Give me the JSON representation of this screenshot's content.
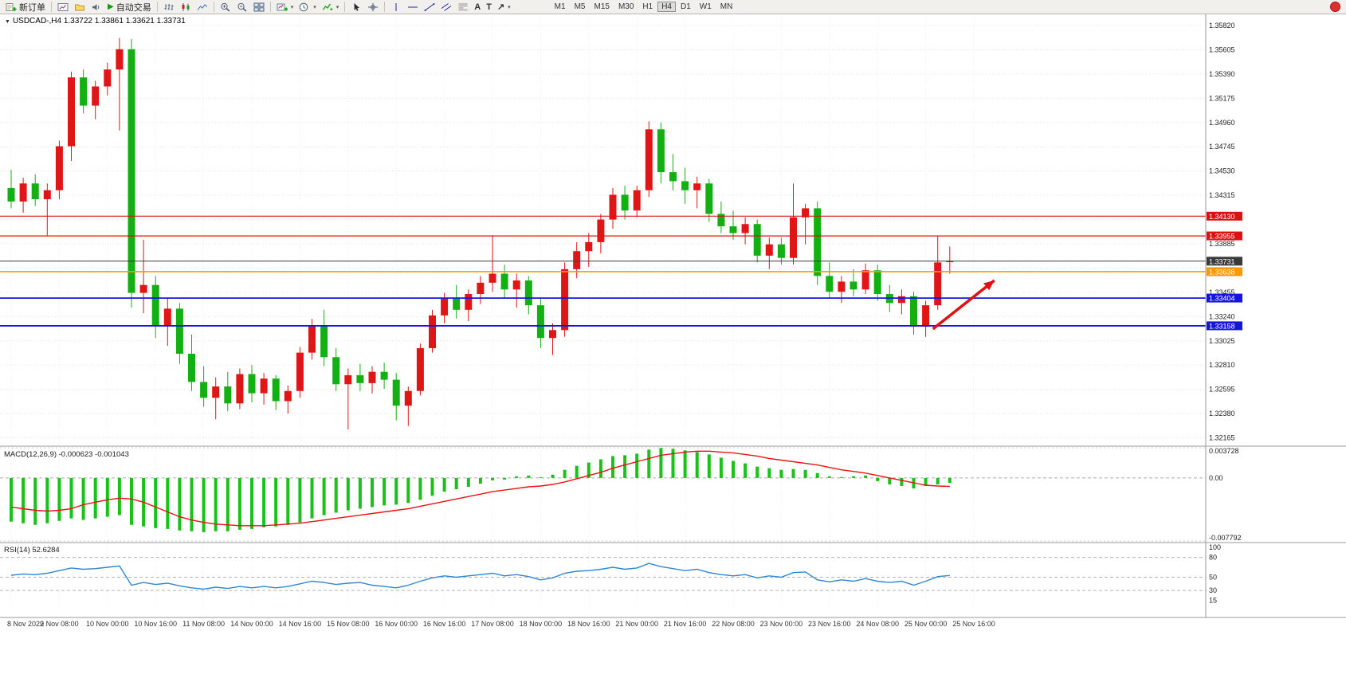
{
  "toolbar": {
    "new_order_label": "新订单",
    "autotrade_label": "自动交易",
    "timeframes": [
      "M1",
      "M5",
      "M15",
      "M30",
      "H1",
      "H4",
      "D1",
      "W1",
      "MN"
    ],
    "active_timeframe": "H4",
    "icons": [
      "new-order-icon",
      "charts-icon",
      "navigator-icon",
      "alerts-icon",
      "autotrade-play-icon",
      "bars-icon",
      "candles-icon",
      "line-chart-icon",
      "zoom-in-icon",
      "zoom-out-icon",
      "tile-windows-icon",
      "new-chart-icon",
      "period-clock-icon",
      "indicators-icon",
      "cursor-icon",
      "crosshair-icon",
      "vertical-line-icon",
      "horizontal-line-icon",
      "trendline-icon",
      "channel-icon",
      "fibonacci-icon",
      "text-icon",
      "label-icon",
      "arrows-icon",
      "notification-badge"
    ]
  },
  "chart_header": {
    "marker": "▼",
    "symbol_period": "USDCAD-,H4",
    "ohlc": "1.33722 1.33861 1.33621 1.33731"
  },
  "indicator_labels": {
    "macd": "MACD(12,26,9) -0.000623 -0.001043",
    "rsi": "RSI(14) 52.6284"
  },
  "chart_data": {
    "type": "candlestick",
    "symbol": "USDCAD",
    "period": "H4",
    "up_color": "#e01515",
    "down_color": "#12b012",
    "price_pane": {
      "ylim": [
        1.32105,
        1.35891
      ],
      "ticks": [
        "1.35820",
        "1.35605",
        "1.35390",
        "1.35175",
        "1.34960",
        "1.34745",
        "1.34530",
        "1.34315",
        "1.34100",
        "1.33885",
        "1.33670",
        "1.33455",
        "1.33240",
        "1.33025",
        "1.32810",
        "1.32595",
        "1.32380",
        "1.32165"
      ],
      "hidden_ticks": [
        "1.34100",
        "1.33670"
      ]
    },
    "candles": [
      [
        1.3438,
        1.3454,
        1.342,
        1.3426
      ],
      [
        1.3426,
        1.3447,
        1.3416,
        1.3442
      ],
      [
        1.3442,
        1.345,
        1.3422,
        1.3428
      ],
      [
        1.3428,
        1.3442,
        1.3396,
        1.3436
      ],
      [
        1.3436,
        1.348,
        1.3428,
        1.3475
      ],
      [
        1.3475,
        1.3541,
        1.3462,
        1.3536
      ],
      [
        1.3536,
        1.3543,
        1.3504,
        1.3511
      ],
      [
        1.3511,
        1.3533,
        1.3499,
        1.3528
      ],
      [
        1.3528,
        1.3549,
        1.352,
        1.3543
      ],
      [
        1.3543,
        1.3571,
        1.3489,
        1.3561
      ],
      [
        1.3561,
        1.357,
        1.3332,
        1.3345
      ],
      [
        1.3345,
        1.3392,
        1.3327,
        1.3352
      ],
      [
        1.3352,
        1.336,
        1.3305,
        1.3316
      ],
      [
        1.3316,
        1.334,
        1.3298,
        1.3331
      ],
      [
        1.3331,
        1.3336,
        1.3282,
        1.3291
      ],
      [
        1.3291,
        1.3308,
        1.3258,
        1.3266
      ],
      [
        1.3266,
        1.328,
        1.3244,
        1.3252
      ],
      [
        1.3252,
        1.327,
        1.3233,
        1.3262
      ],
      [
        1.3262,
        1.3275,
        1.324,
        1.3247
      ],
      [
        1.3247,
        1.3278,
        1.3242,
        1.3273
      ],
      [
        1.3273,
        1.3281,
        1.3248,
        1.3256
      ],
      [
        1.3256,
        1.3274,
        1.3246,
        1.3269
      ],
      [
        1.3269,
        1.3272,
        1.3241,
        1.3249
      ],
      [
        1.3249,
        1.3263,
        1.3238,
        1.3258
      ],
      [
        1.3258,
        1.3297,
        1.3252,
        1.3292
      ],
      [
        1.3292,
        1.3322,
        1.3286,
        1.3316
      ],
      [
        1.3316,
        1.333,
        1.328,
        1.3288
      ],
      [
        1.3288,
        1.3296,
        1.3258,
        1.3264
      ],
      [
        1.3264,
        1.3278,
        1.3224,
        1.3272
      ],
      [
        1.3272,
        1.3282,
        1.3258,
        1.3265
      ],
      [
        1.3265,
        1.328,
        1.3256,
        1.3275
      ],
      [
        1.3275,
        1.3283,
        1.326,
        1.3268
      ],
      [
        1.3268,
        1.3274,
        1.3232,
        1.3245
      ],
      [
        1.3245,
        1.3262,
        1.3227,
        1.3258
      ],
      [
        1.3258,
        1.33,
        1.3254,
        1.3296
      ],
      [
        1.3296,
        1.333,
        1.3292,
        1.3325
      ],
      [
        1.3325,
        1.3345,
        1.3318,
        1.334
      ],
      [
        1.334,
        1.3352,
        1.3322,
        1.333
      ],
      [
        1.333,
        1.3348,
        1.332,
        1.3344
      ],
      [
        1.3344,
        1.336,
        1.3335,
        1.3354
      ],
      [
        1.3354,
        1.3396,
        1.3346,
        1.3362
      ],
      [
        1.3362,
        1.337,
        1.334,
        1.3348
      ],
      [
        1.3348,
        1.3362,
        1.3332,
        1.3356
      ],
      [
        1.3356,
        1.336,
        1.3326,
        1.3334
      ],
      [
        1.3334,
        1.334,
        1.3296,
        1.3305
      ],
      [
        1.3305,
        1.3318,
        1.329,
        1.3312
      ],
      [
        1.3312,
        1.3372,
        1.3306,
        1.3366
      ],
      [
        1.3366,
        1.339,
        1.3358,
        1.3382
      ],
      [
        1.3382,
        1.3398,
        1.3368,
        1.339
      ],
      [
        1.339,
        1.3415,
        1.338,
        1.341
      ],
      [
        1.341,
        1.3438,
        1.3402,
        1.3432
      ],
      [
        1.3432,
        1.344,
        1.341,
        1.3418
      ],
      [
        1.3418,
        1.344,
        1.3412,
        1.3436
      ],
      [
        1.3436,
        1.3497,
        1.343,
        1.349
      ],
      [
        1.349,
        1.3496,
        1.3442,
        1.3452
      ],
      [
        1.3452,
        1.3468,
        1.3436,
        1.3444
      ],
      [
        1.3444,
        1.3456,
        1.3424,
        1.3436
      ],
      [
        1.3436,
        1.3448,
        1.342,
        1.3442
      ],
      [
        1.3442,
        1.3446,
        1.3408,
        1.3415
      ],
      [
        1.3415,
        1.3426,
        1.3398,
        1.3404
      ],
      [
        1.3404,
        1.3418,
        1.3392,
        1.3398
      ],
      [
        1.3398,
        1.3412,
        1.3388,
        1.3406
      ],
      [
        1.3406,
        1.341,
        1.3372,
        1.3378
      ],
      [
        1.3378,
        1.3394,
        1.3366,
        1.3388
      ],
      [
        1.3388,
        1.3394,
        1.337,
        1.3376
      ],
      [
        1.3376,
        1.3442,
        1.337,
        1.3412
      ],
      [
        1.3412,
        1.3424,
        1.3388,
        1.342
      ],
      [
        1.342,
        1.3426,
        1.3352,
        1.336
      ],
      [
        1.336,
        1.3372,
        1.334,
        1.3346
      ],
      [
        1.3346,
        1.336,
        1.3336,
        1.3355
      ],
      [
        1.3355,
        1.3366,
        1.3342,
        1.3348
      ],
      [
        1.3348,
        1.3371,
        1.3344,
        1.3365
      ],
      [
        1.3365,
        1.337,
        1.3338,
        1.3344
      ],
      [
        1.3344,
        1.3352,
        1.3328,
        1.3336
      ],
      [
        1.3336,
        1.3348,
        1.3326,
        1.3342
      ],
      [
        1.3342,
        1.3346,
        1.3308,
        1.3315
      ],
      [
        1.3315,
        1.3338,
        1.3306,
        1.3334
      ],
      [
        1.3334,
        1.3395,
        1.333,
        1.3372
      ],
      [
        1.33722,
        1.33861,
        1.33621,
        1.33731
      ]
    ],
    "time_labels": [
      "8 Nov 2022",
      "9 Nov 08:00",
      "10 Nov 00:00",
      "10 Nov 16:00",
      "11 Nov 08:00",
      "14 Nov 00:00",
      "14 Nov 16:00",
      "15 Nov 08:00",
      "16 Nov 00:00",
      "16 Nov 16:00",
      "17 Nov 08:00",
      "18 Nov 00:00",
      "18 Nov 16:00",
      "21 Nov 00:00",
      "21 Nov 16:00",
      "22 Nov 08:00",
      "23 Nov 00:00",
      "23 Nov 16:00",
      "24 Nov 08:00",
      "25 Nov 00:00",
      "25 Nov 16:00"
    ],
    "label_every": 4,
    "hlines": [
      {
        "price": 1.3413,
        "label": "1.34130",
        "color": "#dd1111",
        "width": 1.2
      },
      {
        "price": 1.33955,
        "label": "1.33955",
        "color": "#dd1111",
        "width": 1.2
      },
      {
        "price": 1.33731,
        "label": "1.33731",
        "color": "#3a3a3a",
        "width": 1
      },
      {
        "price": 1.33638,
        "label": "1.33638",
        "color": "#ff9800",
        "width": 1.6
      },
      {
        "price": 1.33404,
        "label": "1.33404",
        "color": "#1515dd",
        "width": 1.8
      },
      {
        "price": 1.33158,
        "label": "1.33158",
        "color": "#1515dd",
        "width": 1.8
      }
    ],
    "arrow": {
      "x1_bar": 76.6,
      "y1_price": 1.3313,
      "x2_bar": 81.7,
      "y2_price": 1.3356,
      "color": "#e01010"
    },
    "macd": {
      "params": "12,26,9",
      "value": -0.000623,
      "signal_value": -0.001043,
      "ylim": [
        -0.007792,
        0.003728
      ],
      "axis_labels": [
        "0.003728",
        "0.00",
        "-0.007792"
      ],
      "hist_color": "#19c119",
      "signal_color": "#ee1111",
      "hist": [
        -0.0054,
        -0.0056,
        -0.0058,
        -0.0056,
        -0.0053,
        -0.005,
        -0.0052,
        -0.005,
        -0.0048,
        -0.0046,
        -0.0058,
        -0.006,
        -0.0062,
        -0.0063,
        -0.0065,
        -0.0066,
        -0.0067,
        -0.0066,
        -0.0066,
        -0.0064,
        -0.0063,
        -0.0061,
        -0.006,
        -0.0058,
        -0.0055,
        -0.005,
        -0.0046,
        -0.0043,
        -0.004,
        -0.0038,
        -0.0036,
        -0.0034,
        -0.0033,
        -0.0031,
        -0.0027,
        -0.0022,
        -0.0017,
        -0.0014,
        -0.0011,
        -0.0007,
        -0.0003,
        -0.0002,
        0.0002,
        0.0003,
        0.0001,
        0.0004,
        0.001,
        0.0015,
        0.0019,
        0.0023,
        0.0027,
        0.0028,
        0.003,
        0.0035,
        0.0037,
        0.0036,
        0.0034,
        0.0032,
        0.0029,
        0.0025,
        0.0021,
        0.0018,
        0.0014,
        0.0012,
        0.001,
        0.0011,
        0.001,
        0.0006,
        0.0002,
        0.0001,
        0.0002,
        0.0003,
        -0.0004,
        -0.0008,
        -0.001,
        -0.0013,
        -0.001,
        -0.0008,
        -0.000623
      ],
      "signal": [
        -0.0036,
        -0.0038,
        -0.004,
        -0.0041,
        -0.004,
        -0.0038,
        -0.0033,
        -0.003,
        -0.0027,
        -0.0025,
        -0.0026,
        -0.003,
        -0.0036,
        -0.0042,
        -0.0048,
        -0.0052,
        -0.0055,
        -0.0057,
        -0.0058,
        -0.0059,
        -0.0059,
        -0.0059,
        -0.0058,
        -0.0057,
        -0.0056,
        -0.0054,
        -0.0052,
        -0.005,
        -0.0048,
        -0.0046,
        -0.0044,
        -0.0042,
        -0.004,
        -0.0038,
        -0.0035,
        -0.0032,
        -0.0029,
        -0.0026,
        -0.0023,
        -0.002,
        -0.0017,
        -0.0015,
        -0.0013,
        -0.0011,
        -0.001,
        -0.0008,
        -0.0005,
        -0.0001,
        0.0003,
        0.0007,
        0.0012,
        0.0016,
        0.002,
        0.0024,
        0.0028,
        0.003,
        0.0032,
        0.0033,
        0.0033,
        0.0032,
        0.0031,
        0.0029,
        0.0027,
        0.0024,
        0.0022,
        0.002,
        0.0018,
        0.0016,
        0.0013,
        0.001,
        0.0008,
        0.0006,
        0.0003,
        0.0,
        -0.0003,
        -0.0006,
        -0.0009,
        -0.001,
        -0.001043
      ]
    },
    "rsi": {
      "period": 14,
      "value": 52.6284,
      "ylim": [
        0,
        100
      ],
      "levels": [
        80,
        50,
        30
      ],
      "axis_labels": [
        "100",
        "80",
        "50",
        "30",
        "15"
      ],
      "line_color": "#2f86d2",
      "values": [
        53,
        55,
        54,
        56,
        60,
        64,
        62,
        63,
        65,
        67,
        38,
        42,
        39,
        41,
        37,
        34,
        32,
        35,
        33,
        36,
        34,
        36,
        34,
        36,
        40,
        44,
        42,
        39,
        41,
        42,
        38,
        36,
        34,
        38,
        44,
        49,
        52,
        50,
        52,
        54,
        56,
        52,
        54,
        51,
        46,
        49,
        56,
        59,
        60,
        62,
        65,
        62,
        64,
        71,
        66,
        63,
        60,
        62,
        57,
        54,
        52,
        54,
        49,
        52,
        50,
        57,
        58,
        46,
        43,
        46,
        44,
        48,
        44,
        42,
        44,
        38,
        44,
        51,
        52.6
      ]
    }
  }
}
